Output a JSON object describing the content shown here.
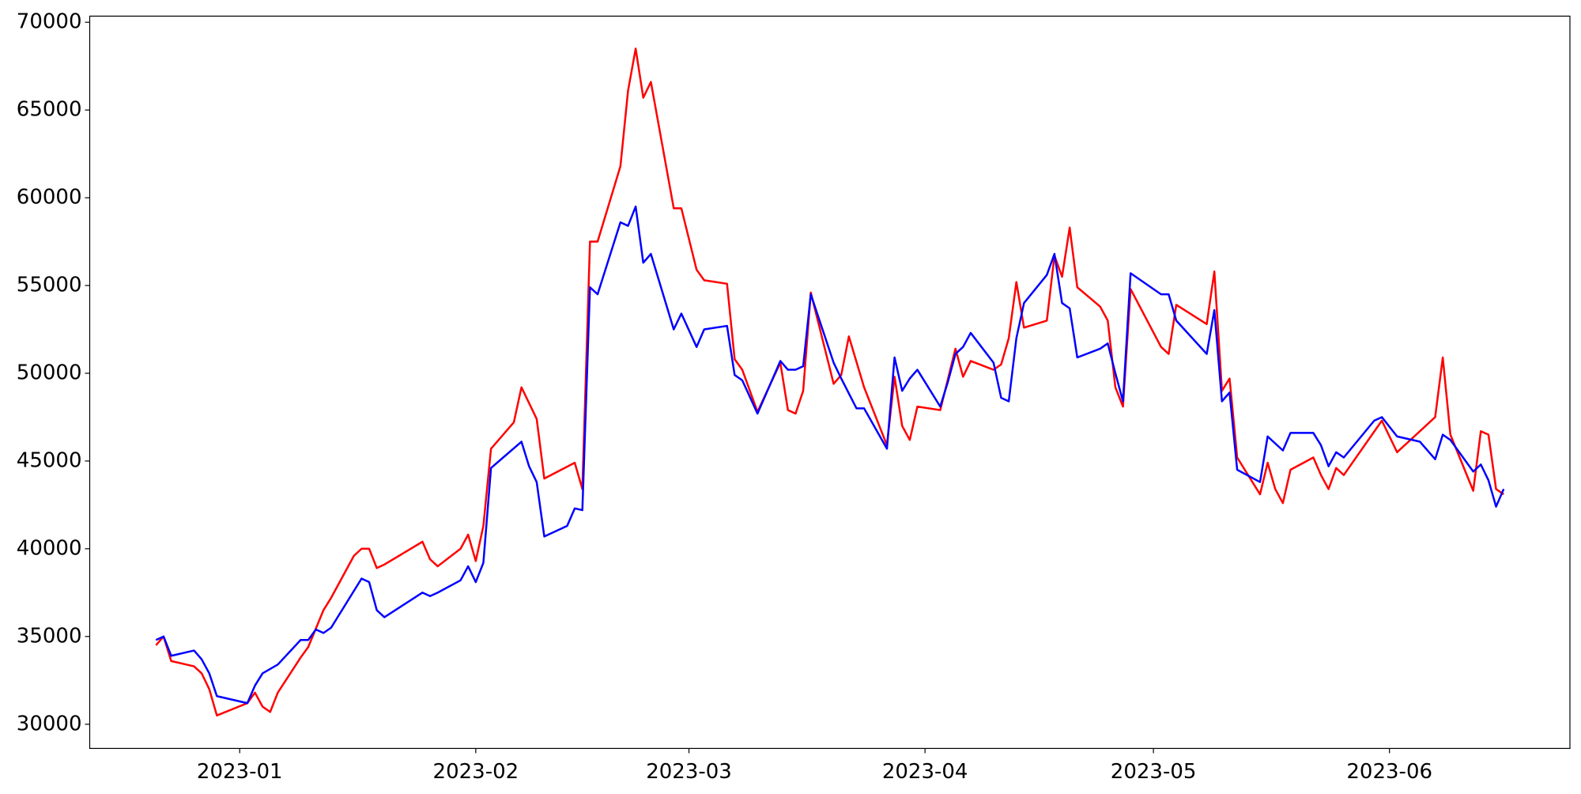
{
  "chart_data": {
    "type": "line",
    "xlim": [
      -19.7,
      174.7
    ],
    "ylim": [
      28620,
      70350
    ],
    "xticks": [
      {
        "value": 0,
        "label": "2023-01"
      },
      {
        "value": 31,
        "label": "2023-02"
      },
      {
        "value": 59,
        "label": "2023-03"
      },
      {
        "value": 90,
        "label": "2023-04"
      },
      {
        "value": 120,
        "label": "2023-05"
      },
      {
        "value": 151,
        "label": "2023-06"
      }
    ],
    "yticks": [
      30000,
      35000,
      40000,
      45000,
      50000,
      55000,
      60000,
      65000,
      70000
    ],
    "grid": false,
    "series": [
      {
        "color": "#ff0000",
        "x": [
          -11,
          -10,
          -9,
          -6,
          -5,
          -4,
          -3,
          1,
          2,
          3,
          4,
          5,
          8,
          9,
          11,
          12,
          15,
          16,
          17,
          18,
          19,
          24,
          25,
          26,
          29,
          30,
          31,
          32,
          33,
          36,
          37,
          39,
          40,
          44,
          45,
          46,
          47,
          50,
          51,
          52,
          53,
          54,
          57,
          58,
          60,
          61,
          64,
          65,
          66,
          68,
          71,
          72,
          73,
          74,
          75,
          78,
          79,
          80,
          82,
          85,
          86,
          87,
          88,
          89,
          92,
          94,
          95,
          96,
          99,
          100,
          101,
          102,
          103,
          106,
          107,
          108,
          109,
          110,
          113,
          114,
          115,
          116,
          117,
          121,
          122,
          123,
          127,
          128,
          129,
          130,
          131,
          134,
          135,
          136,
          137,
          138,
          141,
          142,
          143,
          144,
          145,
          150,
          151,
          152,
          157,
          158,
          159,
          162,
          163,
          164,
          165,
          166
        ],
        "values": [
          34500,
          35000,
          33600,
          33300,
          32900,
          32000,
          30500,
          31200,
          31800,
          31000,
          30700,
          31800,
          33800,
          34400,
          36500,
          37200,
          39600,
          40000,
          40000,
          38900,
          39100,
          40400,
          39400,
          39000,
          40000,
          40800,
          39300,
          41300,
          45700,
          47200,
          49200,
          47400,
          44000,
          44900,
          43400,
          57500,
          57500,
          61800,
          66100,
          68500,
          65700,
          66600,
          59400,
          59400,
          55900,
          55300,
          55100,
          50800,
          50200,
          47800,
          50600,
          47900,
          47700,
          49000,
          54600,
          49400,
          49900,
          52100,
          49200,
          45900,
          49800,
          47000,
          46200,
          48100,
          47900,
          51400,
          49800,
          50700,
          50200,
          50500,
          52000,
          55200,
          52600,
          53000,
          56700,
          55500,
          58300,
          54900,
          53800,
          53000,
          49200,
          48100,
          54800,
          51500,
          51100,
          53900,
          52800,
          55800,
          49000,
          49700,
          45200,
          43100,
          44900,
          43400,
          42600,
          44500,
          45200,
          44200,
          43400,
          44600,
          44200,
          47300,
          46400,
          45500,
          47500,
          50900,
          46500,
          43300,
          46700,
          46500,
          43400,
          43100
        ]
      },
      {
        "color": "#0000ff",
        "x": [
          -11,
          -10,
          -9,
          -6,
          -5,
          -4,
          -3,
          1,
          2,
          3,
          5,
          8,
          9,
          10,
          11,
          12,
          16,
          17,
          18,
          19,
          24,
          25,
          26,
          29,
          30,
          31,
          32,
          33,
          37,
          38,
          39,
          40,
          43,
          44,
          45,
          46,
          47,
          50,
          51,
          52,
          53,
          54,
          57,
          58,
          60,
          61,
          64,
          65,
          66,
          68,
          71,
          72,
          73,
          74,
          75,
          78,
          79,
          81,
          82,
          85,
          86,
          87,
          88,
          89,
          92,
          93,
          94,
          95,
          96,
          99,
          100,
          101,
          102,
          103,
          106,
          107,
          108,
          109,
          110,
          113,
          114,
          115,
          116,
          117,
          121,
          122,
          123,
          127,
          128,
          129,
          130,
          131,
          134,
          135,
          137,
          138,
          141,
          142,
          143,
          144,
          145,
          149,
          150,
          152,
          155,
          157,
          158,
          159,
          162,
          163,
          164,
          165,
          166
        ],
        "values": [
          34800,
          35000,
          33900,
          34200,
          33700,
          32900,
          31600,
          31200,
          32200,
          32900,
          33400,
          34800,
          34800,
          35400,
          35200,
          35500,
          38300,
          38100,
          36500,
          36100,
          37500,
          37300,
          37500,
          38200,
          39000,
          38100,
          39200,
          44600,
          46100,
          44700,
          43800,
          40700,
          41300,
          42300,
          42200,
          54900,
          54500,
          58600,
          58400,
          59500,
          56300,
          56800,
          52500,
          53400,
          51500,
          52500,
          52700,
          49900,
          49600,
          47700,
          50700,
          50200,
          50200,
          50400,
          54500,
          50600,
          49700,
          48000,
          48000,
          45700,
          50900,
          49000,
          49700,
          50200,
          48100,
          49500,
          51100,
          51500,
          52300,
          50600,
          48600,
          48400,
          52000,
          54000,
          55600,
          56800,
          54000,
          53700,
          50900,
          51400,
          51700,
          50000,
          48400,
          55700,
          54500,
          54500,
          53000,
          51100,
          53600,
          48400,
          48900,
          44500,
          43800,
          46400,
          45600,
          46600,
          46600,
          45900,
          44700,
          45500,
          45200,
          47300,
          47500,
          46400,
          46100,
          45100,
          46500,
          46200,
          44400,
          44800,
          43900,
          42400,
          43400
        ]
      }
    ]
  }
}
